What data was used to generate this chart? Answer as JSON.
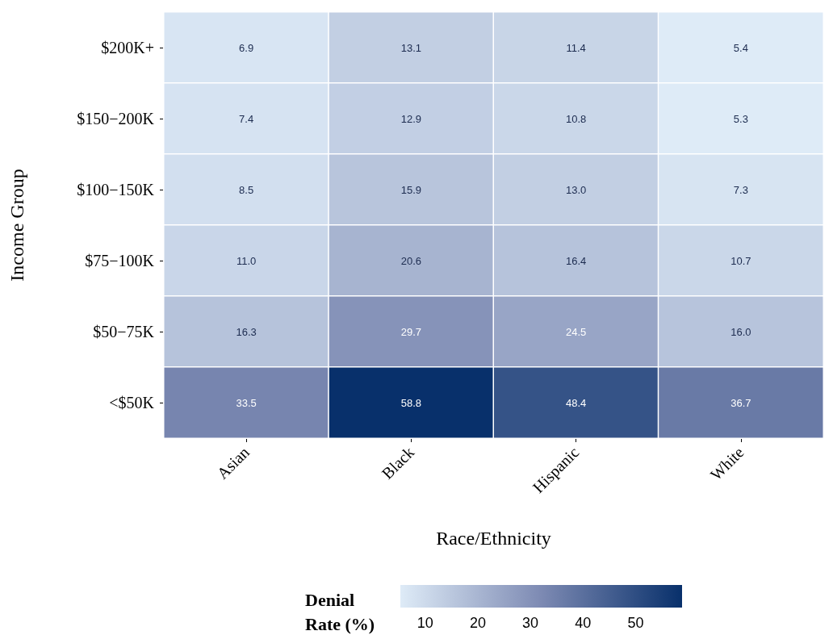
{
  "chart_data": {
    "type": "heatmap",
    "xlabel": "Race/Ethnicity",
    "ylabel": "Income Group",
    "clabel": "Denial Rate (%)",
    "categories": [
      "Asian",
      "Black",
      "Hispanic",
      "White"
    ],
    "y_categories": [
      "$200K+",
      "$150−200K",
      "$100−150K",
      "$75−100K",
      "$50−75K",
      "<$50K"
    ],
    "cells": [
      [
        6.9,
        13.1,
        11.4,
        5.4
      ],
      [
        7.4,
        12.9,
        10.8,
        5.3
      ],
      [
        8.5,
        15.9,
        13.0,
        7.3
      ],
      [
        11.0,
        20.6,
        16.4,
        10.7
      ],
      [
        16.3,
        29.7,
        24.5,
        16.0
      ],
      [
        33.5,
        58.8,
        48.4,
        36.7
      ]
    ],
    "cell_labels": [
      [
        "6.9",
        "13.1",
        "11.4",
        "5.4"
      ],
      [
        "7.4",
        "12.9",
        "10.8",
        "5.3"
      ],
      [
        "8.5",
        "15.9",
        "13.0",
        "7.3"
      ],
      [
        "11.0",
        "20.6",
        "16.4",
        "10.7"
      ],
      [
        "16.3",
        "29.7",
        "24.5",
        "16.0"
      ],
      [
        "33.5",
        "58.8",
        "48.4",
        "36.7"
      ]
    ],
    "clim": [
      5.3,
      58.8
    ],
    "cticks": [
      10,
      20,
      30,
      40,
      50
    ],
    "colors": [
      "#deebf7",
      "#7d8ab3",
      "#08306b"
    ]
  }
}
